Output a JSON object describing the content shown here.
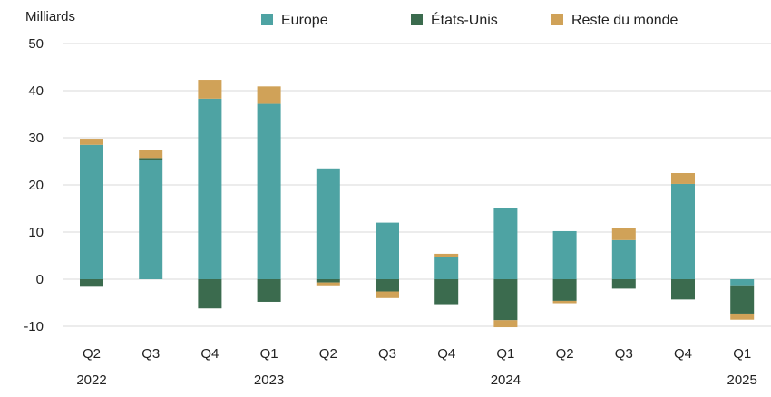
{
  "chart_data": {
    "type": "bar",
    "stacked": true,
    "ylabel": "Milliards",
    "ylim": [
      -10,
      50
    ],
    "yticks": [
      50,
      40,
      30,
      20,
      10,
      0,
      -10
    ],
    "grid": true,
    "legend_position": "top",
    "categories": [
      "Q2",
      "Q3",
      "Q4",
      "Q1",
      "Q2",
      "Q3",
      "Q4",
      "Q1",
      "Q2",
      "Q3",
      "Q4",
      "Q1"
    ],
    "year_labels": [
      {
        "index": 0,
        "label": "2022"
      },
      {
        "index": 3,
        "label": "2023"
      },
      {
        "index": 7,
        "label": "2024"
      },
      {
        "index": 11,
        "label": "2025"
      }
    ],
    "series": [
      {
        "name": "Europe",
        "color": "#4ea3a3",
        "values": [
          28.5,
          25.3,
          38.3,
          37.2,
          23.5,
          12.0,
          4.8,
          15.0,
          10.2,
          8.3,
          20.2,
          -1.3
        ]
      },
      {
        "name": "États-Unis",
        "color": "#3b6b4e",
        "values": [
          -1.6,
          0.4,
          -6.2,
          -4.8,
          -0.7,
          -2.6,
          -5.3,
          -8.7,
          -4.6,
          -2.0,
          -4.3,
          -6.0
        ]
      },
      {
        "name": "Reste du monde",
        "color": "#d0a258",
        "values": [
          1.3,
          1.8,
          4.0,
          3.7,
          -0.6,
          -1.4,
          0.6,
          -1.5,
          -0.5,
          2.5,
          2.3,
          -1.3
        ]
      }
    ]
  }
}
